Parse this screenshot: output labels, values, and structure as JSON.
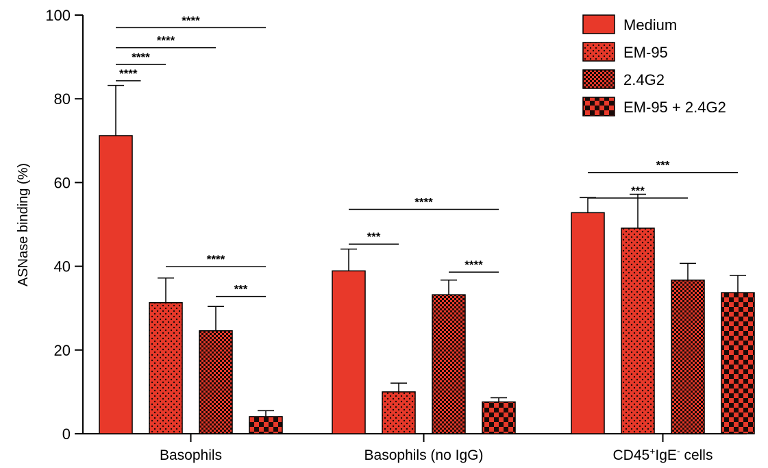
{
  "chart_data": {
    "type": "bar",
    "ylabel": "ASNase binding (%)",
    "ylim": [
      0,
      100
    ],
    "yticks": [
      0,
      20,
      40,
      60,
      80,
      100
    ],
    "categories": [
      "Basophils",
      "Basophils (no IgG)",
      "CD45+IgE- cells"
    ],
    "category_label_parts": [
      [
        {
          "t": "Basophils",
          "s": "normal"
        }
      ],
      [
        {
          "t": "Basophils (no IgG)",
          "s": "normal"
        }
      ],
      [
        {
          "t": "CD45",
          "s": "normal"
        },
        {
          "t": "+",
          "s": "super"
        },
        {
          "t": "IgE",
          "s": "normal"
        },
        {
          "t": "-",
          "s": "super"
        },
        {
          "t": " cells",
          "s": "normal"
        }
      ]
    ],
    "series": [
      {
        "name": "Medium",
        "pattern": "solid",
        "values": [
          71.2,
          38.9,
          52.8
        ],
        "errors": [
          12.0,
          5.2,
          3.6
        ]
      },
      {
        "name": "EM-95",
        "pattern": "dots",
        "values": [
          31.3,
          10.0,
          49.1
        ],
        "errors": [
          5.9,
          2.1,
          8.1
        ]
      },
      {
        "name": "2.4G2",
        "pattern": "fine-check",
        "values": [
          24.6,
          33.2,
          36.7
        ],
        "errors": [
          5.8,
          3.5,
          4.0
        ]
      },
      {
        "name": "EM-95 + 2.4G2",
        "pattern": "coarse-check",
        "values": [
          4.1,
          7.6,
          33.7
        ],
        "errors": [
          1.4,
          1.0,
          4.1
        ]
      }
    ],
    "significance": [
      {
        "cat": 0,
        "from": 0,
        "to": 3,
        "at": 97,
        "label": "****"
      },
      {
        "cat": 0,
        "from": 0,
        "to": 2,
        "at": 92.2,
        "label": "****"
      },
      {
        "cat": 0,
        "from": 0,
        "to": 1,
        "at": 88.2,
        "label": "****"
      },
      {
        "cat": 0,
        "from": 0,
        "to": 0.5,
        "at": 84.3,
        "label": "****"
      },
      {
        "cat": 0,
        "from": 1,
        "to": 3,
        "at": 39.9,
        "label": "****"
      },
      {
        "cat": 0,
        "from": 2,
        "to": 3,
        "at": 32.8,
        "label": "***"
      },
      {
        "cat": 1,
        "from": 0,
        "to": 3,
        "at": 53.6,
        "label": "****"
      },
      {
        "cat": 1,
        "from": 0,
        "to": 1,
        "at": 45.3,
        "label": "***"
      },
      {
        "cat": 1,
        "from": 2,
        "to": 3,
        "at": 38.6,
        "label": "****"
      },
      {
        "cat": 2,
        "from": 0,
        "to": 3,
        "at": 62.4,
        "label": "***"
      },
      {
        "cat": 2,
        "from": 0,
        "to": 2,
        "at": 56.3,
        "label": "***"
      }
    ],
    "colors": {
      "bar": "#e8392a",
      "pattern": "#1a0a08"
    },
    "legend_position": "top-right",
    "grid": false
  }
}
